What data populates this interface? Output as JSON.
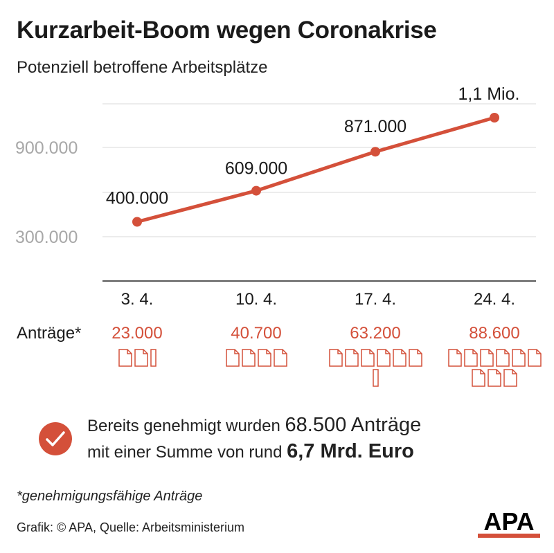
{
  "header": {
    "title": "Kurzarbeit-Boom wegen Coronakrise",
    "subtitle": "Potenziell betroffene Arbeitsplätze"
  },
  "chart_data": {
    "type": "line",
    "categories": [
      "3. 4.",
      "10. 4.",
      "17. 4.",
      "24. 4."
    ],
    "values": [
      400000,
      609000,
      871000,
      1100000
    ],
    "data_labels": [
      "400.000",
      "609.000",
      "871.000",
      "1,1 Mio."
    ],
    "y_ticks": [
      300000,
      900000
    ],
    "y_tick_labels": [
      "300.000",
      "900.000"
    ],
    "ylim": [
      0,
      1350000
    ],
    "grid": true,
    "color": "#d4503a"
  },
  "applications": {
    "label": "Anträge*",
    "items": [
      {
        "value": "23.000",
        "docs": 2.3
      },
      {
        "value": "40.700",
        "docs": 4.0
      },
      {
        "value": "63.200",
        "docs": 6.3
      },
      {
        "value": "88.600",
        "docs": 9.0
      }
    ]
  },
  "approved": {
    "line1_a": "Bereits genehmigt wurden",
    "line1_b": "68.500 Anträge",
    "line2_a": "mit einer Summe von rund",
    "line2_b": "6,7 Mrd. Euro"
  },
  "footnote": "*genehmigungsfähige Anträge",
  "source": "Grafik: © APA, Quelle: Arbeitsministerium",
  "logo": {
    "text": "APA",
    "accent": "#d4503a"
  }
}
